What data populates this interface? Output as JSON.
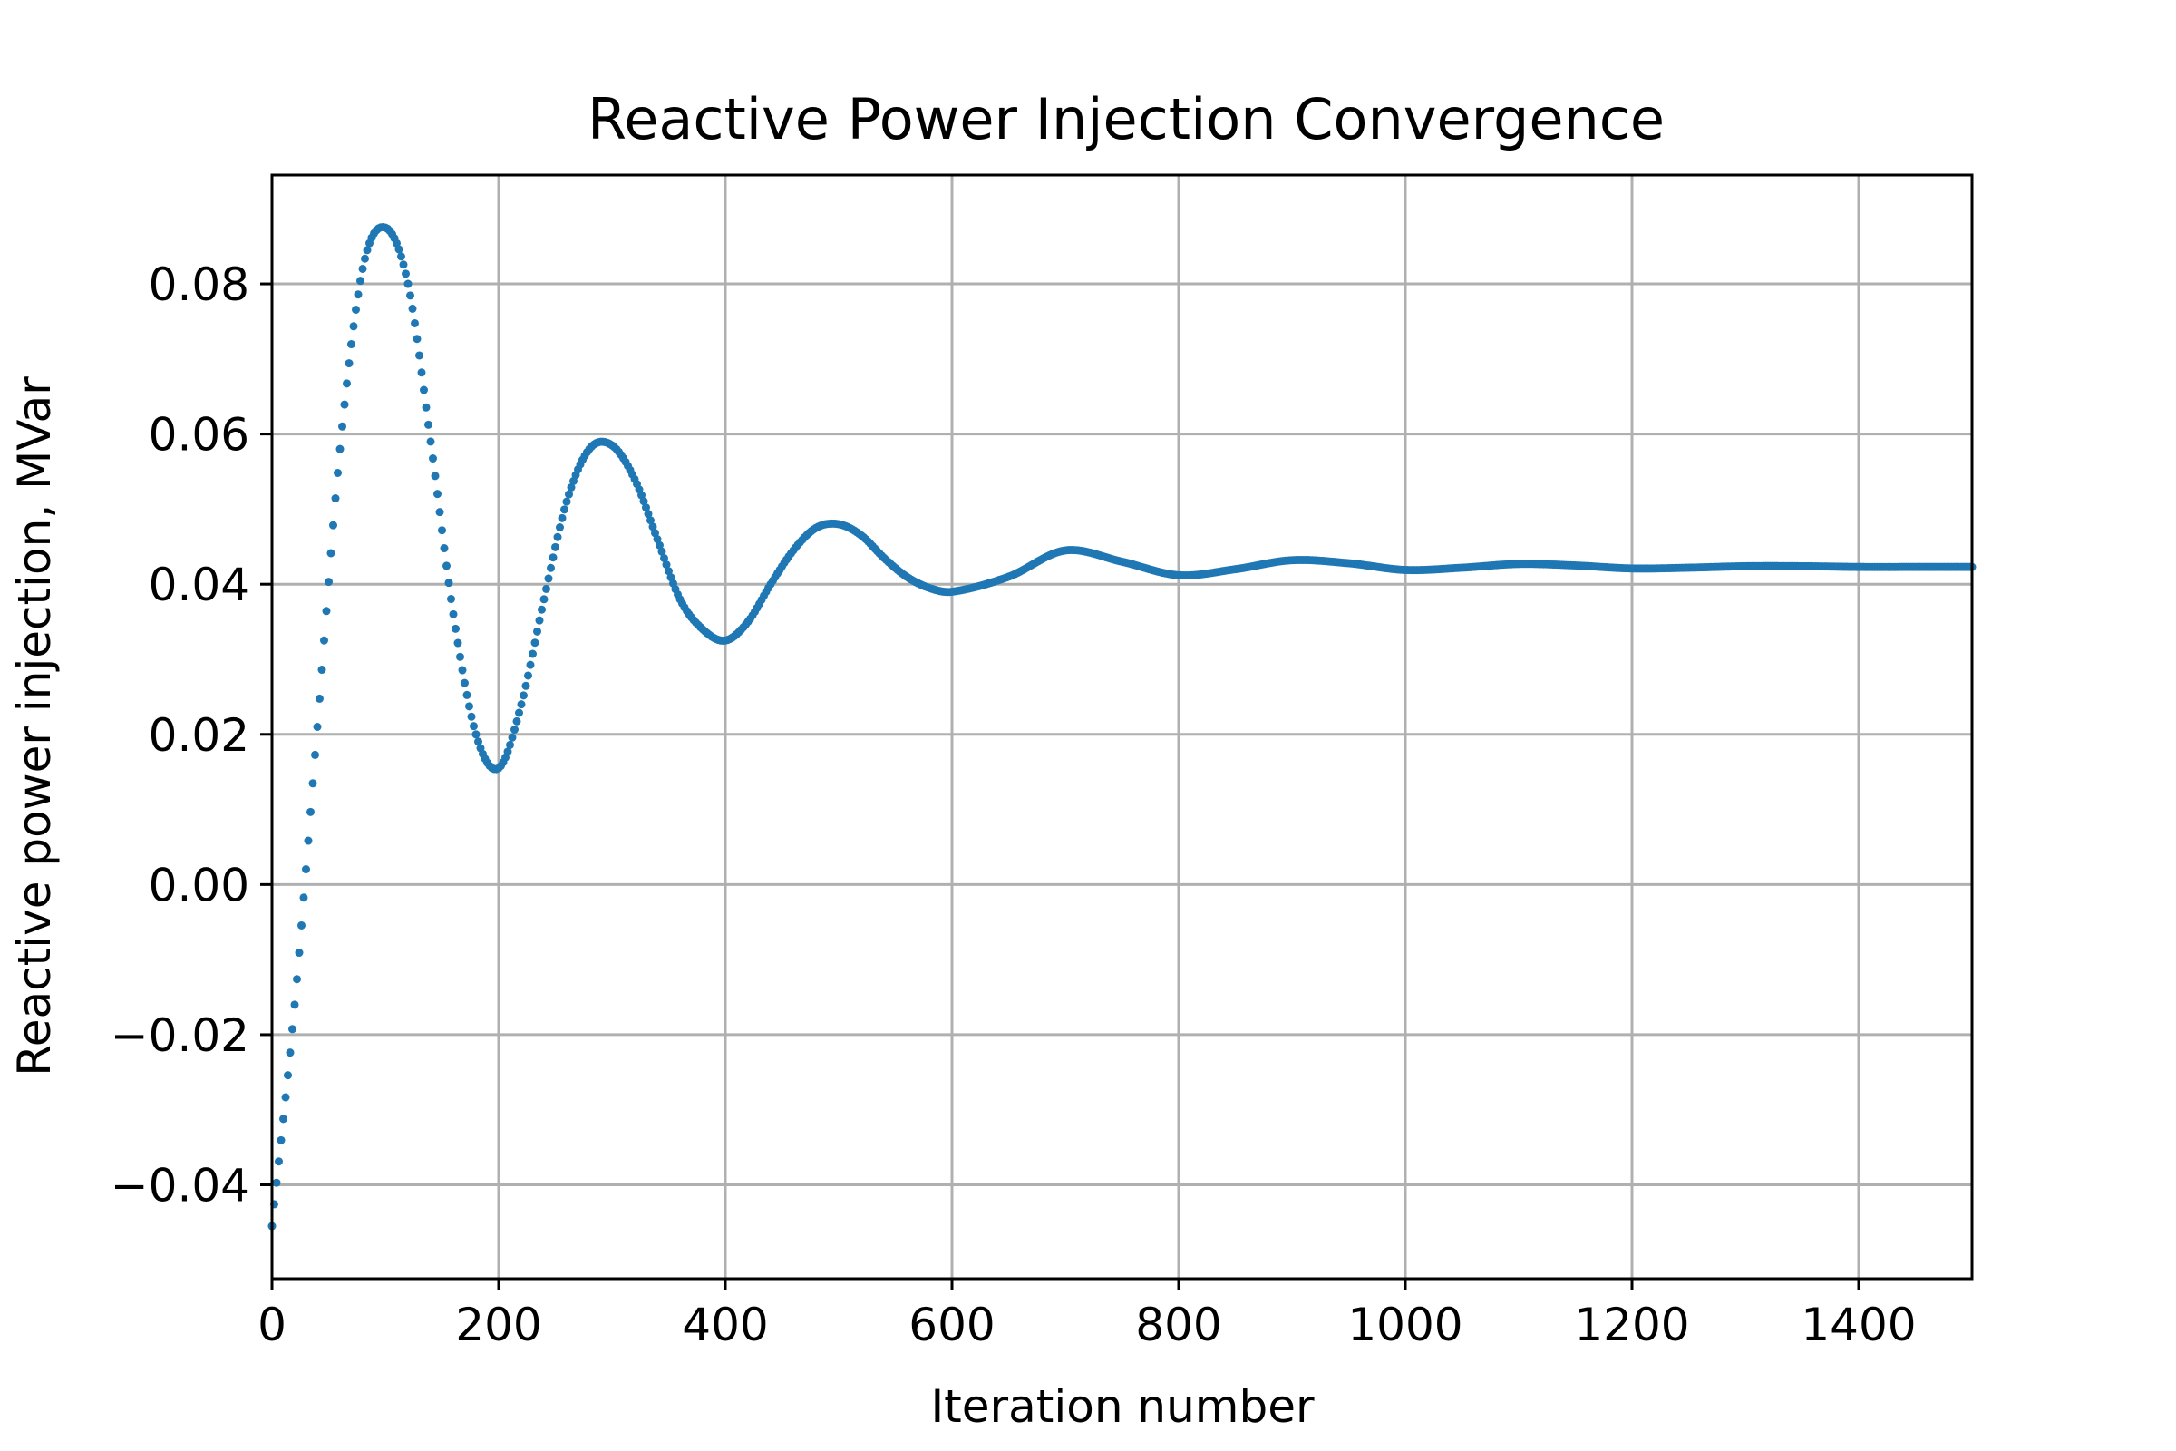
{
  "chart_data": {
    "type": "scatter",
    "title": "Reactive Power Injection Convergence",
    "xlabel": "Iteration number",
    "ylabel": "Reactive power injection, MVar",
    "xlim": [
      0,
      1500
    ],
    "ylim": [
      -0.0525,
      0.0945
    ],
    "xticks": [
      0,
      200,
      400,
      600,
      800,
      1000,
      1200,
      1400
    ],
    "xtick_labels": [
      "0",
      "200",
      "400",
      "600",
      "800",
      "1000",
      "1200",
      "1400"
    ],
    "yticks": [
      -0.04,
      -0.02,
      0.0,
      0.02,
      0.04,
      0.06,
      0.08
    ],
    "ytick_labels": [
      "−0.04",
      "−0.02",
      "0.00",
      "0.02",
      "0.04",
      "0.06",
      "0.08"
    ],
    "grid": true,
    "color": "#1f77b4",
    "x": [
      0,
      20,
      40,
      60,
      80,
      100,
      120,
      140,
      160,
      180,
      200,
      220,
      240,
      260,
      280,
      300,
      320,
      340,
      360,
      380,
      400,
      420,
      440,
      460,
      480,
      500,
      520,
      540,
      560,
      580,
      600,
      650,
      700,
      750,
      800,
      850,
      900,
      950,
      1000,
      1050,
      1100,
      1150,
      1200,
      1250,
      1300,
      1350,
      1400,
      1450,
      1500
    ],
    "y": [
      -0.0455,
      -0.016,
      0.021,
      0.058,
      0.082,
      0.0875,
      0.08,
      0.059,
      0.036,
      0.02,
      0.0155,
      0.024,
      0.038,
      0.051,
      0.058,
      0.0585,
      0.054,
      0.046,
      0.038,
      0.034,
      0.0325,
      0.035,
      0.04,
      0.0445,
      0.0475,
      0.048,
      0.0465,
      0.0435,
      0.041,
      0.0395,
      0.039,
      0.041,
      0.0445,
      0.043,
      0.0412,
      0.042,
      0.0432,
      0.0428,
      0.0419,
      0.0422,
      0.0427,
      0.0425,
      0.0421,
      0.0422,
      0.0424,
      0.0424,
      0.0423,
      0.0423,
      0.0423
    ]
  }
}
